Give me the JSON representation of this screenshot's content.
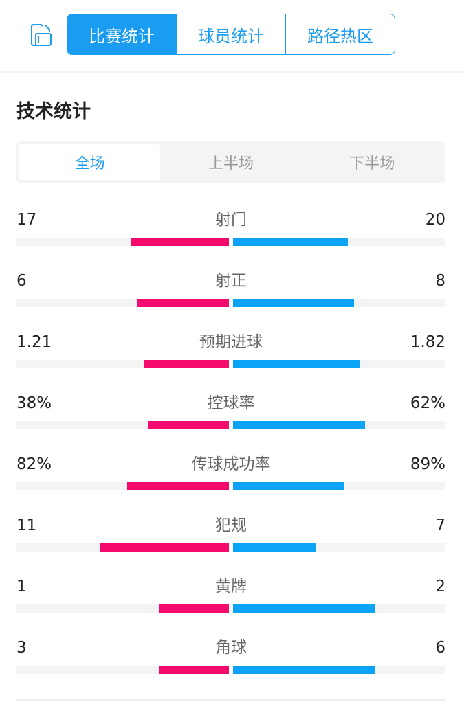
{
  "header": {
    "rotate_icon": "screen-rotate-icon",
    "tabs": [
      {
        "label": "比赛统计",
        "active": true
      },
      {
        "label": "球员统计",
        "active": false
      },
      {
        "label": "路径热区",
        "active": false
      }
    ]
  },
  "section_title": "技术统计",
  "period_tabs": [
    {
      "label": "全场",
      "active": true
    },
    {
      "label": "上半场",
      "active": false
    },
    {
      "label": "下半场",
      "active": false
    }
  ],
  "colors": {
    "home": "#f50a6e",
    "away": "#0aa3f5",
    "accent": "#1a9cf0"
  },
  "stats": [
    {
      "label": "射门",
      "home": "17",
      "away": "20",
      "home_fill": 0.46,
      "away_fill": 0.54
    },
    {
      "label": "射正",
      "home": "6",
      "away": "8",
      "home_fill": 0.43,
      "away_fill": 0.57
    },
    {
      "label": "预期进球",
      "home": "1.21",
      "away": "1.82",
      "home_fill": 0.4,
      "away_fill": 0.6
    },
    {
      "label": "控球率",
      "home": "38%",
      "away": "62%",
      "home_fill": 0.38,
      "away_fill": 0.62
    },
    {
      "label": "传球成功率",
      "home": "82%",
      "away": "89%",
      "home_fill": 0.48,
      "away_fill": 0.52
    },
    {
      "label": "犯规",
      "home": "11",
      "away": "7",
      "home_fill": 0.61,
      "away_fill": 0.39
    },
    {
      "label": "黄牌",
      "home": "1",
      "away": "2",
      "home_fill": 0.33,
      "away_fill": 0.67
    },
    {
      "label": "角球",
      "home": "3",
      "away": "6",
      "home_fill": 0.33,
      "away_fill": 0.67
    }
  ]
}
